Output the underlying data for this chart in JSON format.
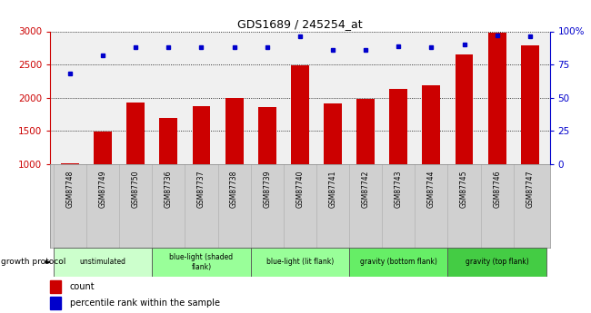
{
  "title": "GDS1689 / 245254_at",
  "samples": [
    "GSM87748",
    "GSM87749",
    "GSM87750",
    "GSM87736",
    "GSM87737",
    "GSM87738",
    "GSM87739",
    "GSM87740",
    "GSM87741",
    "GSM87742",
    "GSM87743",
    "GSM87744",
    "GSM87745",
    "GSM87746",
    "GSM87747"
  ],
  "counts": [
    1010,
    1490,
    1930,
    1700,
    1870,
    2000,
    1860,
    2490,
    1910,
    1990,
    2130,
    2190,
    2650,
    2980,
    2790
  ],
  "percentile_ranks": [
    68,
    82,
    88,
    88,
    88,
    88,
    88,
    96,
    86,
    86,
    89,
    88,
    90,
    97,
    96
  ],
  "percentile_max": 100,
  "count_min": 1000,
  "count_max": 3000,
  "count_ticks": [
    1000,
    1500,
    2000,
    2500,
    3000
  ],
  "percentile_ticks": [
    0,
    25,
    50,
    75,
    100
  ],
  "bar_color": "#cc0000",
  "dot_color": "#0000cc",
  "groups": [
    {
      "label": "unstimulated",
      "indices": [
        0,
        1,
        2
      ],
      "color": "#ccffcc"
    },
    {
      "label": "blue-light (shaded\nflank)",
      "indices": [
        3,
        4,
        5
      ],
      "color": "#99ff99"
    },
    {
      "label": "blue-light (lit flank)",
      "indices": [
        6,
        7,
        8
      ],
      "color": "#99ff99"
    },
    {
      "label": "gravity (bottom flank)",
      "indices": [
        9,
        10,
        11
      ],
      "color": "#66ee66"
    },
    {
      "label": "gravity (top flank)",
      "indices": [
        12,
        13,
        14
      ],
      "color": "#44cc44"
    }
  ],
  "legend_count_label": "count",
  "legend_pct_label": "percentile rank within the sample",
  "growth_protocol_label": "growth protocol",
  "bg_color": "#ffffff",
  "axis_color_left": "#cc0000",
  "axis_color_right": "#0000cc",
  "sample_bg_color": "#d0d0d0",
  "fig_width": 6.5,
  "fig_height": 3.45,
  "dpi": 100
}
